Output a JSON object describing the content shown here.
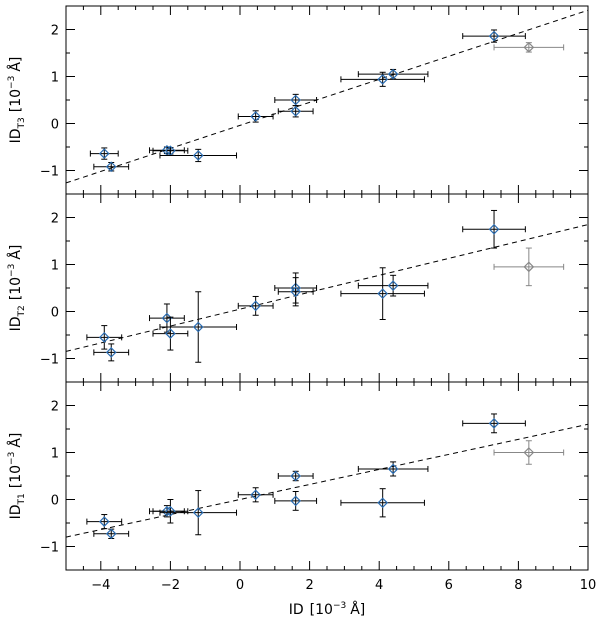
{
  "chart_data": {
    "type": "scatter",
    "xlabel": {
      "base": "ID",
      "unit_prefix": "[10",
      "exp": "−3",
      "unit_suffix": "Å]"
    },
    "xlim": [
      -5,
      10
    ],
    "x_ticks": [
      -4,
      -2,
      0,
      2,
      4,
      6,
      8,
      10
    ],
    "x_tick_labels": [
      "−4",
      "−2",
      "0",
      "2",
      "4",
      "6",
      "8",
      "10"
    ],
    "colors": {
      "marker": "#2a6db3",
      "outlier": "#888888",
      "errorbar": "#000000",
      "outlier_errorbar": "#888888",
      "fit": "#000000"
    },
    "panels": [
      {
        "id": "t3",
        "ylabel": {
          "base": "ID",
          "sub": "T3",
          "unit_prefix": "[10",
          "exp": "−3",
          "unit_suffix": "Å]"
        },
        "ylim": [
          -1.5,
          2.5
        ],
        "y_ticks": [
          -1,
          0,
          1,
          2
        ],
        "y_tick_labels": [
          "−1",
          "0",
          "1",
          "2"
        ],
        "fit": {
          "slope": 0.245,
          "intercept": -0.04
        },
        "points": [
          {
            "x": -3.9,
            "y": -0.64,
            "xerr": 0.4,
            "yerr": 0.12
          },
          {
            "x": -3.7,
            "y": -0.92,
            "xerr": 0.5,
            "yerr": 0.09
          },
          {
            "x": -2.1,
            "y": -0.57,
            "xerr": 0.5,
            "yerr": 0.07
          },
          {
            "x": -2.0,
            "y": -0.58,
            "xerr": 0.5,
            "yerr": 0.07
          },
          {
            "x": -1.2,
            "y": -0.68,
            "xerr": 1.1,
            "yerr": 0.13
          },
          {
            "x": 0.45,
            "y": 0.15,
            "xerr": 0.5,
            "yerr": 0.12
          },
          {
            "x": 1.6,
            "y": 0.5,
            "xerr": 0.6,
            "yerr": 0.12
          },
          {
            "x": 1.6,
            "y": 0.26,
            "xerr": 0.5,
            "yerr": 0.12
          },
          {
            "x": 4.1,
            "y": 0.94,
            "xerr": 1.2,
            "yerr": 0.15
          },
          {
            "x": 4.4,
            "y": 1.05,
            "xerr": 1.0,
            "yerr": 0.1
          },
          {
            "x": 7.3,
            "y": 1.86,
            "xerr": 0.9,
            "yerr": 0.13
          },
          {
            "x": 8.3,
            "y": 1.62,
            "xerr": 1.0,
            "yerr": 0.1,
            "outlier": true
          }
        ]
      },
      {
        "id": "t2",
        "ylabel": {
          "base": "ID",
          "sub": "T2",
          "unit_prefix": "[10",
          "exp": "−3",
          "unit_suffix": "Å]"
        },
        "ylim": [
          -1.5,
          2.5
        ],
        "y_ticks": [
          -1,
          0,
          1,
          2
        ],
        "y_tick_labels": [
          "−1",
          "0",
          "1",
          "2"
        ],
        "fit": {
          "slope": 0.18,
          "intercept": 0.05
        },
        "points": [
          {
            "x": -3.9,
            "y": -0.55,
            "xerr": 0.5,
            "yerr": 0.25
          },
          {
            "x": -3.7,
            "y": -0.87,
            "xerr": 0.5,
            "yerr": 0.18
          },
          {
            "x": -2.1,
            "y": -0.14,
            "xerr": 0.5,
            "yerr": 0.3
          },
          {
            "x": -2.0,
            "y": -0.47,
            "xerr": 0.5,
            "yerr": 0.35
          },
          {
            "x": -1.2,
            "y": -0.33,
            "xerr": 1.1,
            "yerr": 0.75
          },
          {
            "x": 0.45,
            "y": 0.12,
            "xerr": 0.5,
            "yerr": 0.2
          },
          {
            "x": 1.6,
            "y": 0.5,
            "xerr": 0.6,
            "yerr": 0.32
          },
          {
            "x": 1.6,
            "y": 0.42,
            "xerr": 0.5,
            "yerr": 0.3
          },
          {
            "x": 4.1,
            "y": 0.38,
            "xerr": 1.2,
            "yerr": 0.55
          },
          {
            "x": 4.4,
            "y": 0.55,
            "xerr": 1.0,
            "yerr": 0.22
          },
          {
            "x": 7.3,
            "y": 1.75,
            "xerr": 0.9,
            "yerr": 0.4
          },
          {
            "x": 8.3,
            "y": 0.95,
            "xerr": 1.0,
            "yerr": 0.4,
            "outlier": true
          }
        ]
      },
      {
        "id": "t1",
        "ylabel": {
          "base": "ID",
          "sub": "T1",
          "unit_prefix": "[10",
          "exp": "−3",
          "unit_suffix": "Å]"
        },
        "ylim": [
          -1.5,
          2.5
        ],
        "y_ticks": [
          -1,
          0,
          1,
          2
        ],
        "y_tick_labels": [
          "−1",
          "0",
          "1",
          "2"
        ],
        "fit": {
          "slope": 0.16,
          "intercept": 0.0
        },
        "points": [
          {
            "x": -3.9,
            "y": -0.47,
            "xerr": 0.5,
            "yerr": 0.15
          },
          {
            "x": -3.7,
            "y": -0.73,
            "xerr": 0.5,
            "yerr": 0.1
          },
          {
            "x": -2.1,
            "y": -0.25,
            "xerr": 0.5,
            "yerr": 0.12
          },
          {
            "x": -2.0,
            "y": -0.25,
            "xerr": 0.5,
            "yerr": 0.25
          },
          {
            "x": -1.2,
            "y": -0.28,
            "xerr": 1.1,
            "yerr": 0.47
          },
          {
            "x": 0.45,
            "y": 0.1,
            "xerr": 0.5,
            "yerr": 0.15
          },
          {
            "x": 1.6,
            "y": 0.5,
            "xerr": 0.5,
            "yerr": 0.1
          },
          {
            "x": 1.6,
            "y": -0.03,
            "xerr": 0.6,
            "yerr": 0.2
          },
          {
            "x": 4.1,
            "y": -0.07,
            "xerr": 1.2,
            "yerr": 0.3
          },
          {
            "x": 4.4,
            "y": 0.65,
            "xerr": 1.0,
            "yerr": 0.15
          },
          {
            "x": 7.3,
            "y": 1.62,
            "xerr": 0.9,
            "yerr": 0.2
          },
          {
            "x": 8.3,
            "y": 1.0,
            "xerr": 1.0,
            "yerr": 0.25,
            "outlier": true
          }
        ]
      }
    ]
  }
}
